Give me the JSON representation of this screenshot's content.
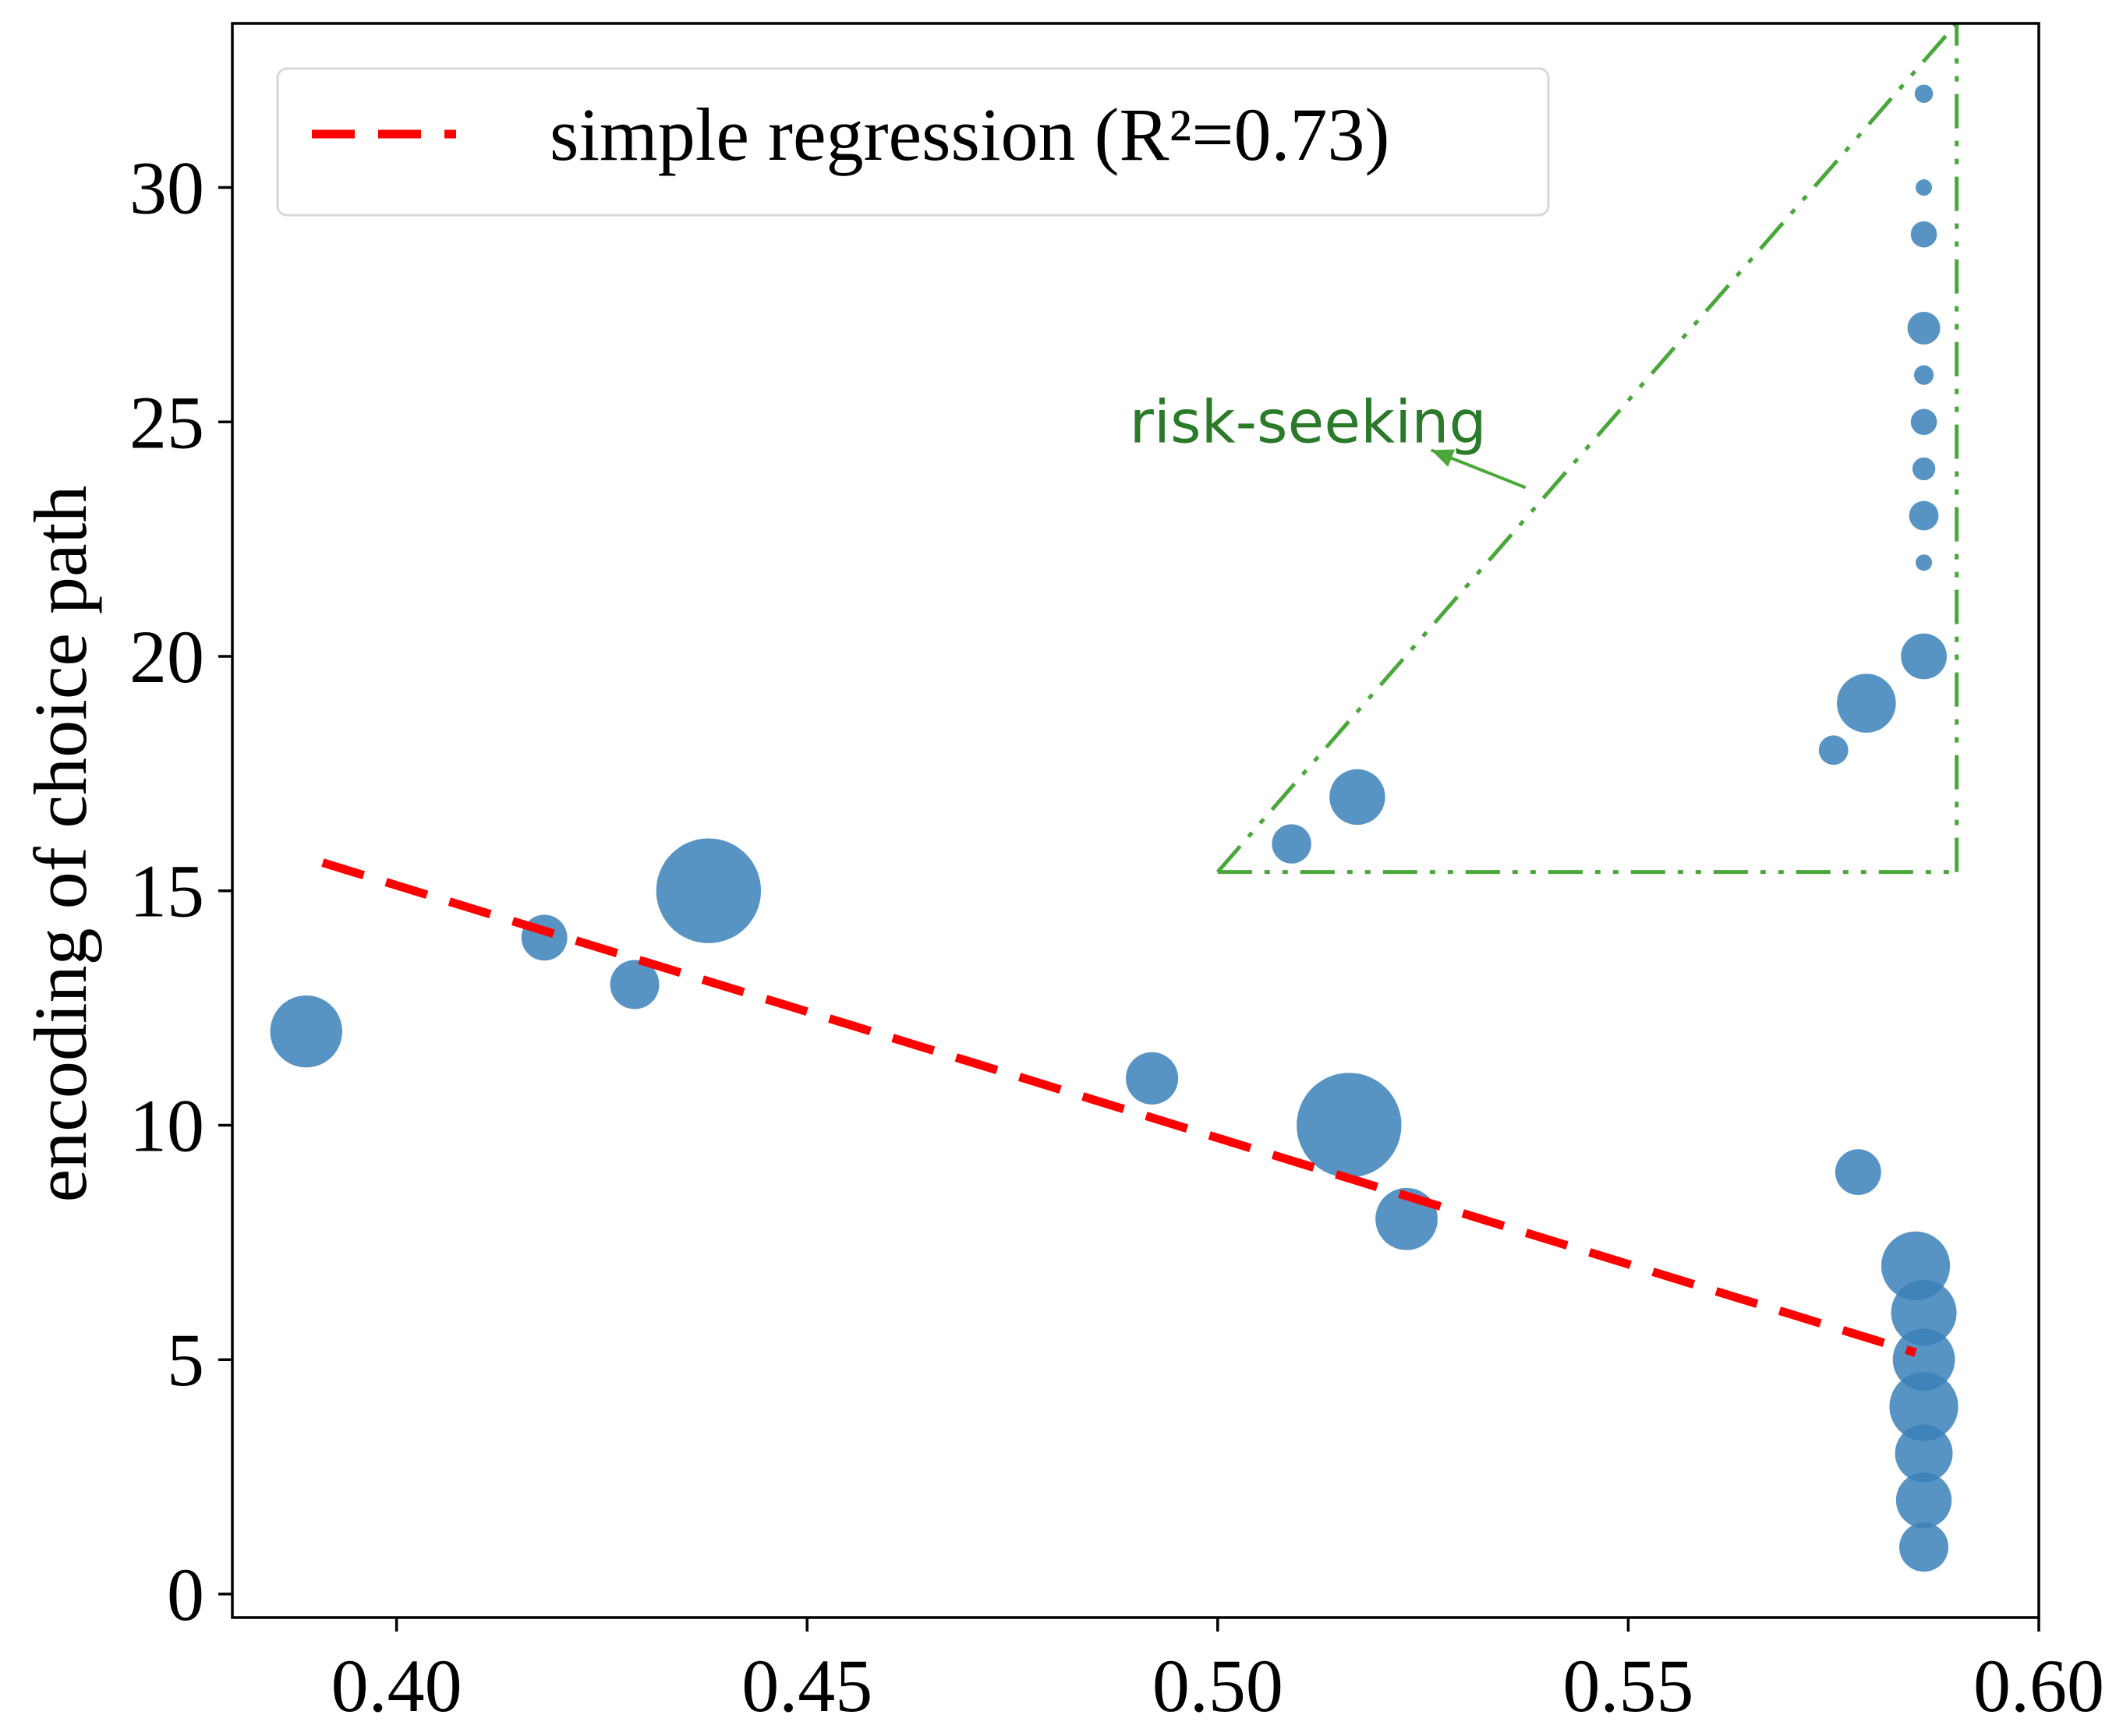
{
  "chart_data": {
    "type": "scatter",
    "title": "",
    "xlabel": "",
    "ylabel": "encoding of choice path",
    "xlim": [
      0.38,
      0.6
    ],
    "ylim": [
      -0.5,
      33.5
    ],
    "xticks": [
      0.4,
      0.45,
      0.5,
      0.55,
      0.6
    ],
    "xtick_labels": [
      "0.40",
      "0.45",
      "0.50",
      "0.55",
      "0.60"
    ],
    "yticks": [
      0,
      5,
      10,
      15,
      20,
      25,
      30
    ],
    "ytick_labels": [
      "0",
      "5",
      "10",
      "15",
      "20",
      "25",
      "30"
    ],
    "grid": false,
    "legend_position": "top-left",
    "point_color": "#3a80b8",
    "points": [
      {
        "x": 0.389,
        "y": 12,
        "size": 1.1
      },
      {
        "x": 0.418,
        "y": 14,
        "size": 0.7
      },
      {
        "x": 0.429,
        "y": 13,
        "size": 0.75
      },
      {
        "x": 0.438,
        "y": 15,
        "size": 1.6
      },
      {
        "x": 0.492,
        "y": 11,
        "size": 0.8
      },
      {
        "x": 0.509,
        "y": 16,
        "size": 0.6
      },
      {
        "x": 0.516,
        "y": 10,
        "size": 1.6
      },
      {
        "x": 0.517,
        "y": 17,
        "size": 0.85
      },
      {
        "x": 0.523,
        "y": 8,
        "size": 0.95
      },
      {
        "x": 0.575,
        "y": 18,
        "size": 0.45
      },
      {
        "x": 0.578,
        "y": 9,
        "size": 0.7
      },
      {
        "x": 0.579,
        "y": 19,
        "size": 0.9
      },
      {
        "x": 0.585,
        "y": 7,
        "size": 1.05
      },
      {
        "x": 0.586,
        "y": 6,
        "size": 1.0
      },
      {
        "x": 0.586,
        "y": 1,
        "size": 0.75
      },
      {
        "x": 0.586,
        "y": 2,
        "size": 0.85
      },
      {
        "x": 0.586,
        "y": 3,
        "size": 0.88
      },
      {
        "x": 0.586,
        "y": 4,
        "size": 1.05
      },
      {
        "x": 0.586,
        "y": 5,
        "size": 0.95
      },
      {
        "x": 0.586,
        "y": 20,
        "size": 0.7
      },
      {
        "x": 0.586,
        "y": 22,
        "size": 0.25
      },
      {
        "x": 0.586,
        "y": 23,
        "size": 0.45
      },
      {
        "x": 0.586,
        "y": 24,
        "size": 0.35
      },
      {
        "x": 0.586,
        "y": 25,
        "size": 0.4
      },
      {
        "x": 0.586,
        "y": 26,
        "size": 0.3
      },
      {
        "x": 0.586,
        "y": 27,
        "size": 0.5
      },
      {
        "x": 0.586,
        "y": 29,
        "size": 0.4
      },
      {
        "x": 0.586,
        "y": 30,
        "size": 0.25
      },
      {
        "x": 0.586,
        "y": 32,
        "size": 0.28
      }
    ],
    "regression": {
      "label": "simple regression (R²=0.73)",
      "color": "#ff0000",
      "start": {
        "x": 0.391,
        "y": 15.6
      },
      "end": {
        "x": 0.585,
        "y": 5.15
      }
    },
    "annotation": {
      "text": "risk-seeking",
      "color": "#2a7a2a",
      "line_color": "#4aa83a",
      "text_at": {
        "x": 0.511,
        "y": 25
      },
      "arrow_from": {
        "x": 0.5375,
        "y": 23.6
      },
      "arrow_to": {
        "x": 0.526,
        "y": 24.4
      },
      "triangle": [
        {
          "x": 0.5,
          "y": 15.4
        },
        {
          "x": 0.59,
          "y": 15.4
        },
        {
          "x": 0.59,
          "y": 33.5
        }
      ]
    }
  }
}
